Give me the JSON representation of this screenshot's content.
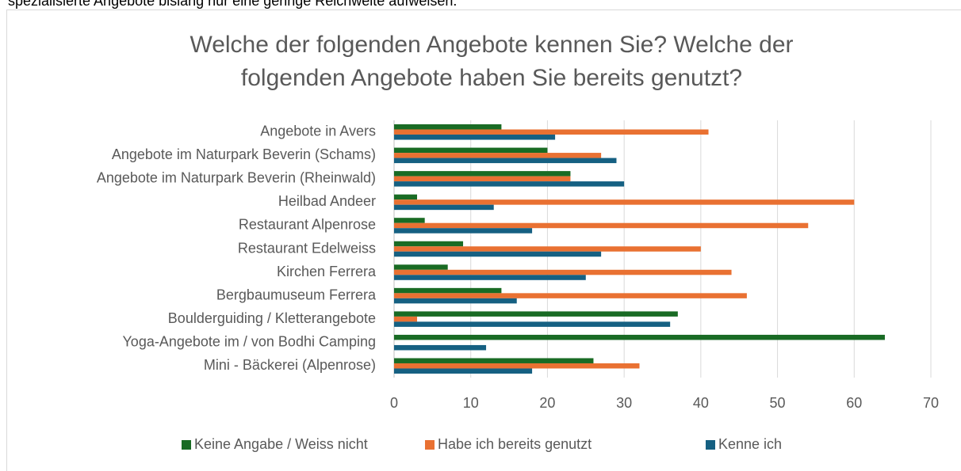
{
  "caption": "spezialisierte Angebote bislang nur eine geringe Reichweite aufweisen.",
  "chart_data": {
    "type": "hbar",
    "title": [
      "Welche der folgenden Angebote kennen Sie? Welche der",
      "folgenden Angebote haben Sie bereits genutzt?"
    ],
    "categories": [
      "Angebote in Avers",
      "Angebote im Naturpark Beverin (Schams)",
      "Angebote im Naturpark Beverin (Rheinwald)",
      "Heilbad Andeer",
      "Restaurant Alpenrose",
      "Restaurant Edelweiss",
      "Kirchen Ferrera",
      "Bergbaumuseum Ferrera",
      "Boulderguiding / Kletterangebote",
      "Yoga-Angebote im / von Bodhi Camping",
      "Mini - Bäckerei (Alpenrose)"
    ],
    "series": [
      {
        "name": "Keine Angabe / Weiss nicht",
        "color": "#196b24",
        "values": [
          14,
          20,
          23,
          3,
          4,
          9,
          7,
          14,
          37,
          64,
          26
        ]
      },
      {
        "name": "Habe ich bereits genutzt",
        "color": "#e97132",
        "values": [
          41,
          27,
          23,
          60,
          54,
          40,
          44,
          46,
          3,
          0,
          32
        ]
      },
      {
        "name": "Kenne ich",
        "color": "#156082",
        "values": [
          21,
          29,
          30,
          13,
          18,
          27,
          25,
          16,
          36,
          12,
          18
        ]
      }
    ],
    "xlim": [
      0,
      70
    ],
    "xticks": [
      0,
      10,
      20,
      30,
      40,
      50,
      60,
      70
    ],
    "grid": true,
    "legend": "bottom"
  }
}
